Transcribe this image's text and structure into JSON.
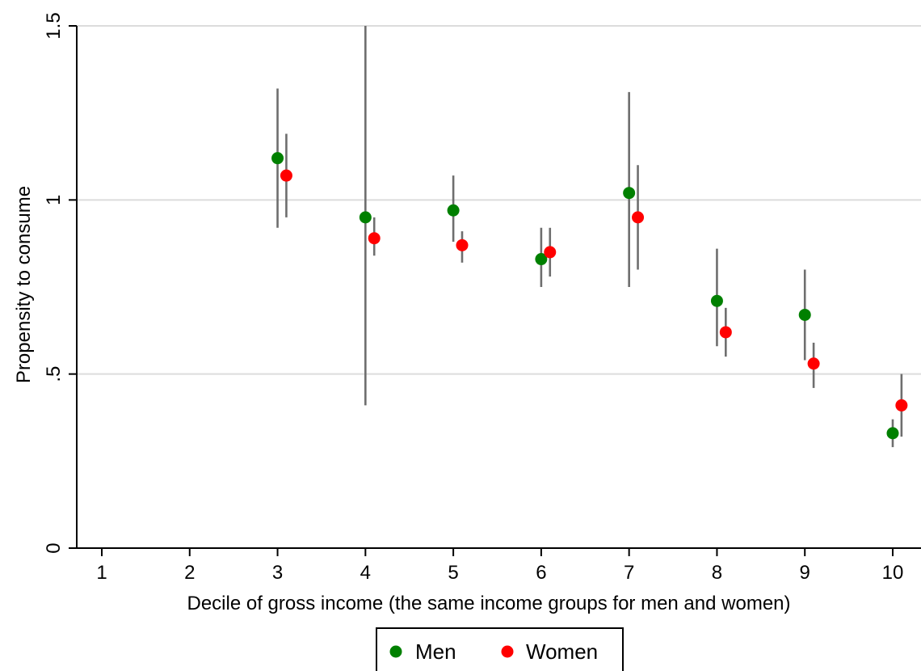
{
  "chart_data": {
    "type": "scatter",
    "title": "",
    "xlabel": "Decile of gross income (the same income groups for men and women)",
    "ylabel": "Propensity to consume",
    "xlim": [
      1,
      10
    ],
    "ylim": [
      0,
      1.5
    ],
    "x_ticks": [
      1,
      2,
      3,
      4,
      5,
      6,
      7,
      8,
      9,
      10
    ],
    "x_tick_labels": [
      "1",
      "2",
      "3",
      "4",
      "5",
      "6",
      "7",
      "8",
      "9",
      "10"
    ],
    "y_ticks": [
      0,
      0.5,
      1,
      1.5
    ],
    "y_tick_labels": [
      "0",
      ".5",
      "1",
      "1.5"
    ],
    "grid": "horizontal",
    "legend_position": "bottom",
    "series": [
      {
        "name": "Men",
        "color": "#008000",
        "x": [
          3,
          4,
          5,
          6,
          7,
          8,
          9,
          10
        ],
        "y": [
          1.12,
          0.95,
          0.97,
          0.83,
          1.02,
          0.71,
          0.67,
          0.33
        ],
        "ci_low": [
          0.92,
          0.41,
          0.88,
          0.75,
          0.75,
          0.58,
          0.54,
          0.29
        ],
        "ci_high": [
          1.32,
          1.5,
          1.07,
          0.92,
          1.31,
          0.86,
          0.8,
          0.37
        ]
      },
      {
        "name": "Women",
        "color": "#ff0000",
        "x": [
          3.1,
          4.1,
          5.1,
          6.1,
          7.1,
          8.1,
          9.1,
          10.1
        ],
        "y": [
          1.07,
          0.89,
          0.87,
          0.85,
          0.95,
          0.62,
          0.53,
          0.41
        ],
        "ci_low": [
          0.95,
          0.84,
          0.82,
          0.78,
          0.8,
          0.55,
          0.46,
          0.32
        ],
        "ci_high": [
          1.19,
          0.95,
          0.91,
          0.92,
          1.1,
          0.69,
          0.59,
          0.5
        ]
      }
    ]
  }
}
